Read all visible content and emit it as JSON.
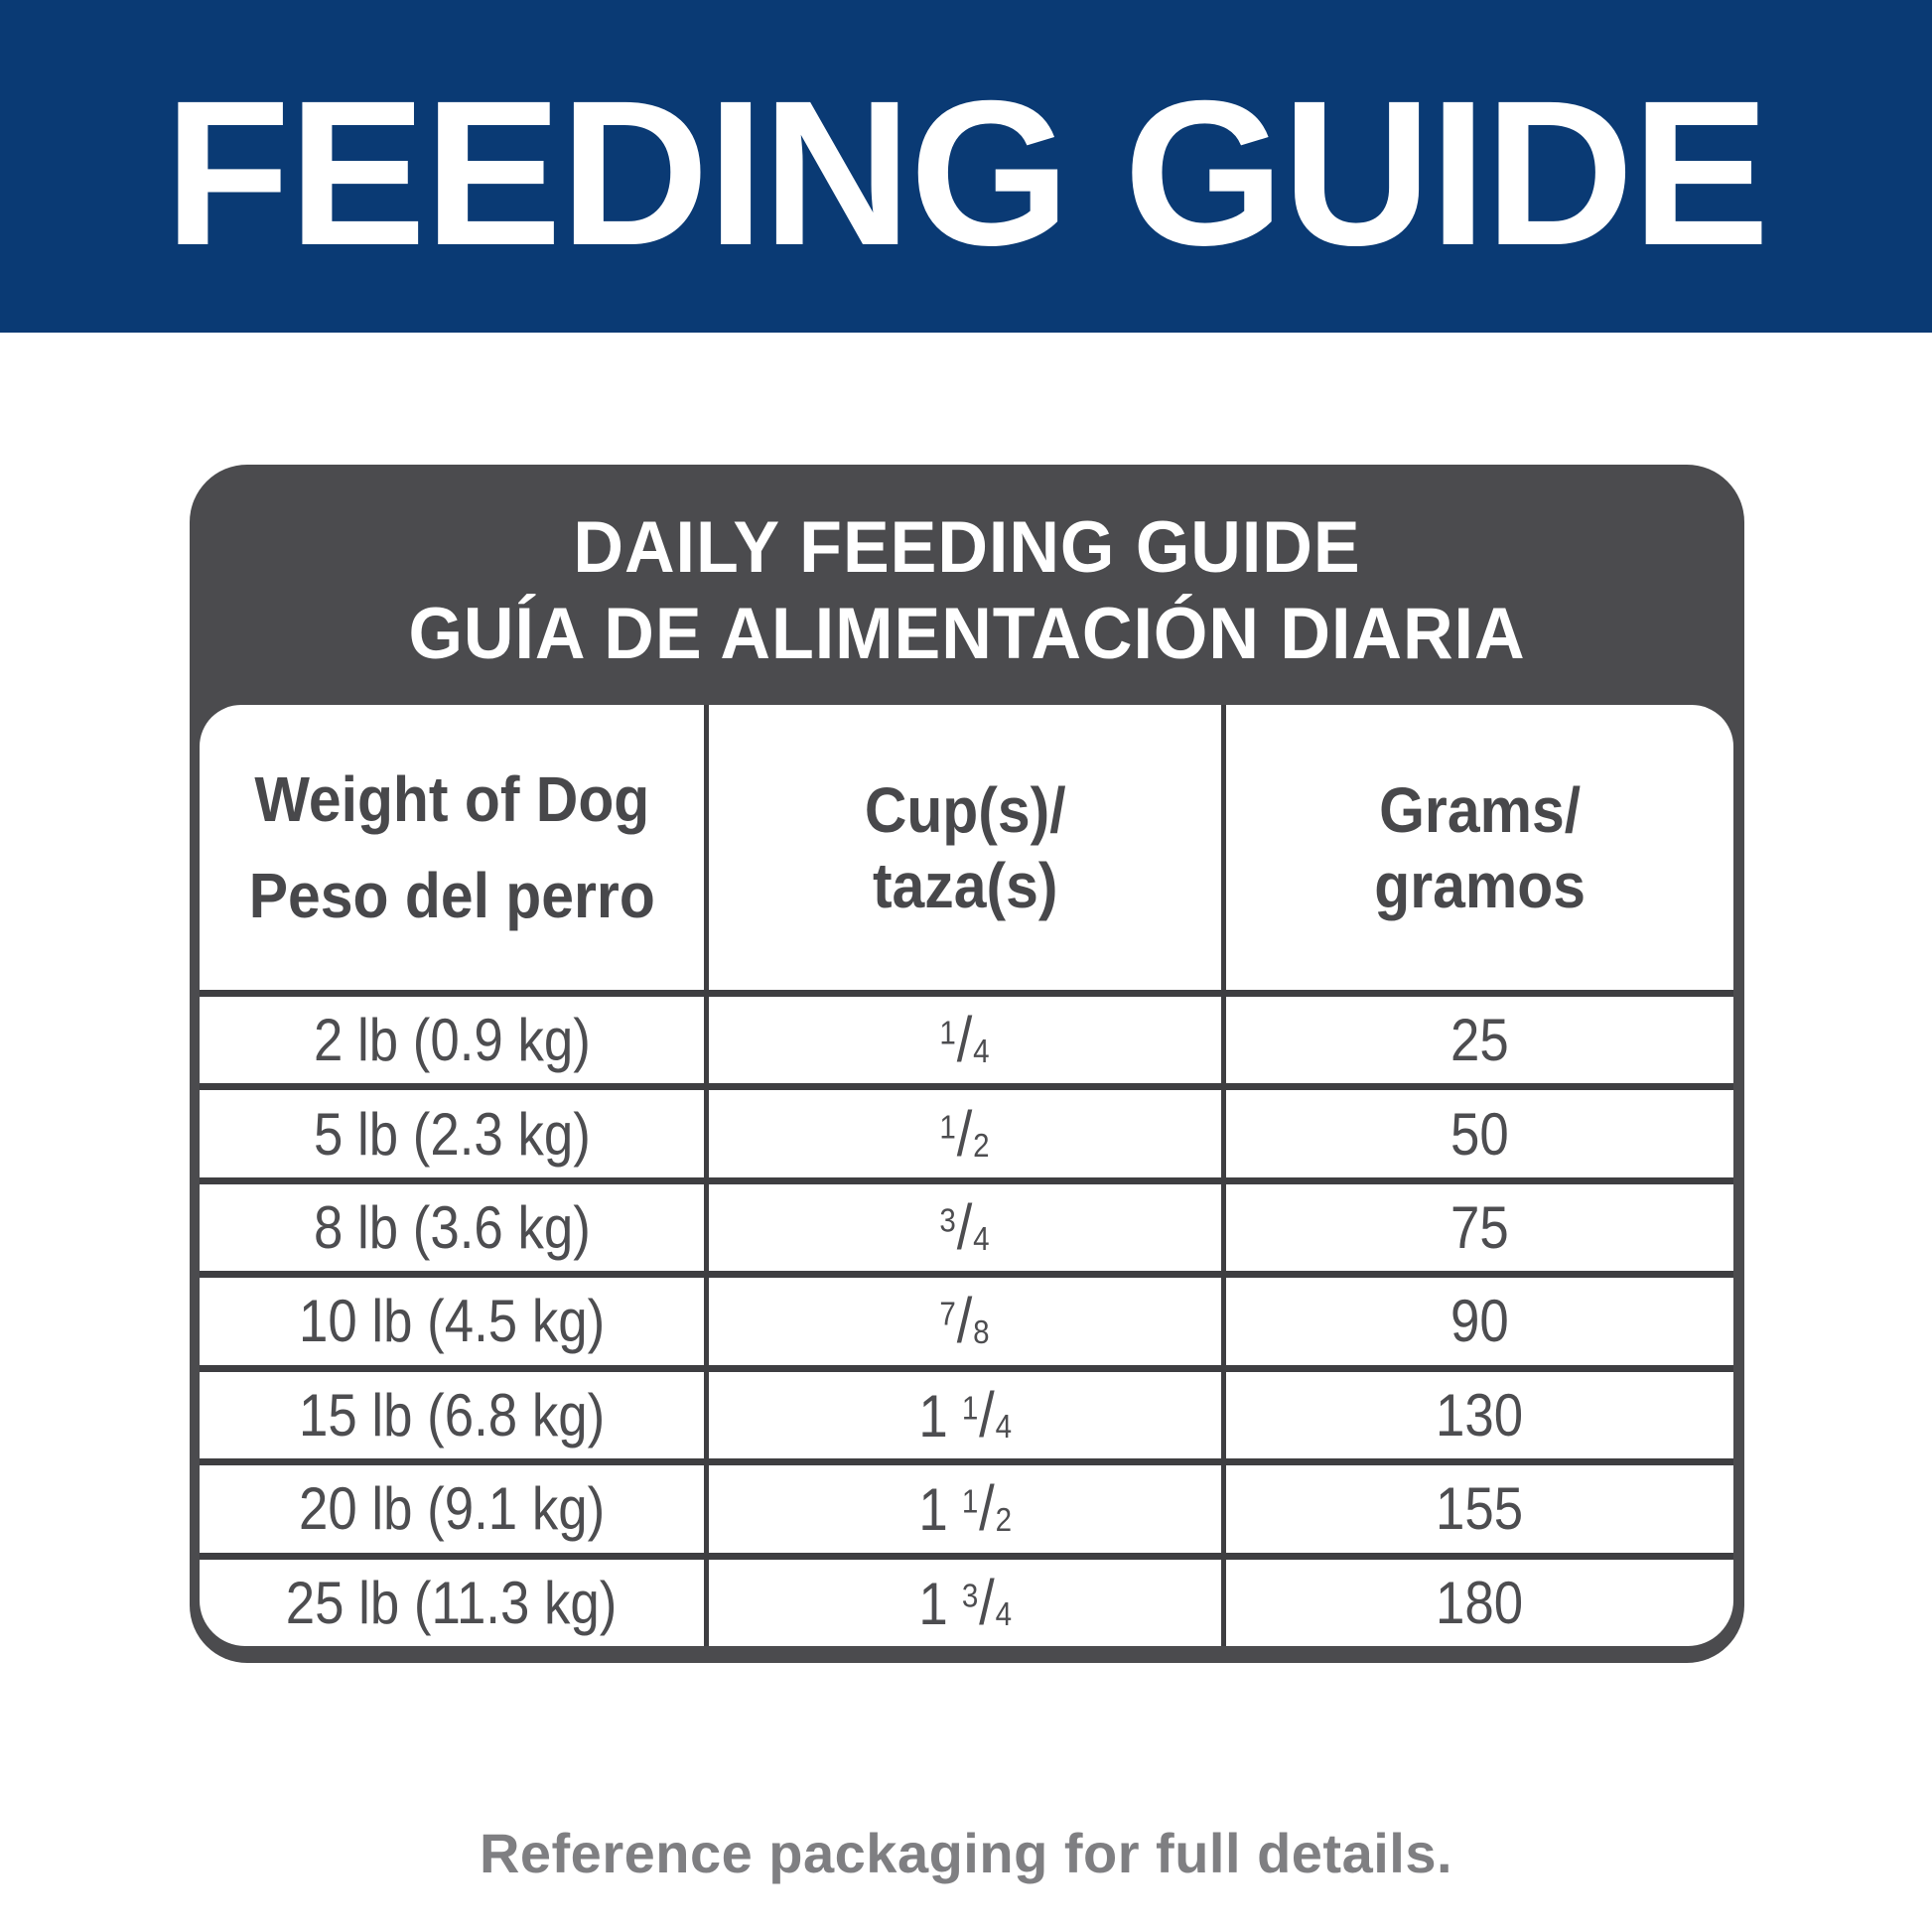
{
  "banner": {
    "title": "FEEDING GUIDE",
    "bg_color": "#0a3a74",
    "text_color": "#ffffff"
  },
  "panel": {
    "title_line1": "DAILY FEEDING GUIDE",
    "title_line2": "GUÍA DE ALIMENTACIÓN DIARIA",
    "bg_color": "#4b4b4e",
    "title_color": "#ffffff"
  },
  "table": {
    "fraction_slash": "/",
    "line_color": "#3e3e41",
    "header_text_color": "#48484b",
    "text_color": "#4d4d50",
    "columns": [
      {
        "id": "weight",
        "label_line1": "Weight of Dog",
        "label_line2": "Peso del perro"
      },
      {
        "id": "cups",
        "label_line1": "Cup(s)/",
        "label_line2": "taza(s)"
      },
      {
        "id": "grams",
        "label_line1": "Grams/",
        "label_line2": "gramos"
      }
    ],
    "rows": [
      {
        "weight": "2 lb (0.9 kg)",
        "cups": {
          "whole": "",
          "numerator": "1",
          "denominator": "4",
          "text": "1/4"
        },
        "grams": "25"
      },
      {
        "weight": "5 lb (2.3 kg)",
        "cups": {
          "whole": "",
          "numerator": "1",
          "denominator": "2",
          "text": "1/2"
        },
        "grams": "50"
      },
      {
        "weight": "8 lb (3.6 kg)",
        "cups": {
          "whole": "",
          "numerator": "3",
          "denominator": "4",
          "text": "3/4"
        },
        "grams": "75"
      },
      {
        "weight": "10 lb (4.5 kg)",
        "cups": {
          "whole": "",
          "numerator": "7",
          "denominator": "8",
          "text": "7/8"
        },
        "grams": "90"
      },
      {
        "weight": "15 lb (6.8 kg)",
        "cups": {
          "whole": "1",
          "numerator": "1",
          "denominator": "4",
          "text": "1 1/4"
        },
        "grams": "130"
      },
      {
        "weight": "20 lb (9.1 kg)",
        "cups": {
          "whole": "1",
          "numerator": "1",
          "denominator": "2",
          "text": "1 1/2"
        },
        "grams": "155"
      },
      {
        "weight": "25 lb (11.3 kg)",
        "cups": {
          "whole": "1",
          "numerator": "3",
          "denominator": "4",
          "text": "1 3/4"
        },
        "grams": "180"
      }
    ]
  },
  "footer": {
    "note": "Reference packaging for full details.",
    "text_color": "#7f7f82"
  }
}
